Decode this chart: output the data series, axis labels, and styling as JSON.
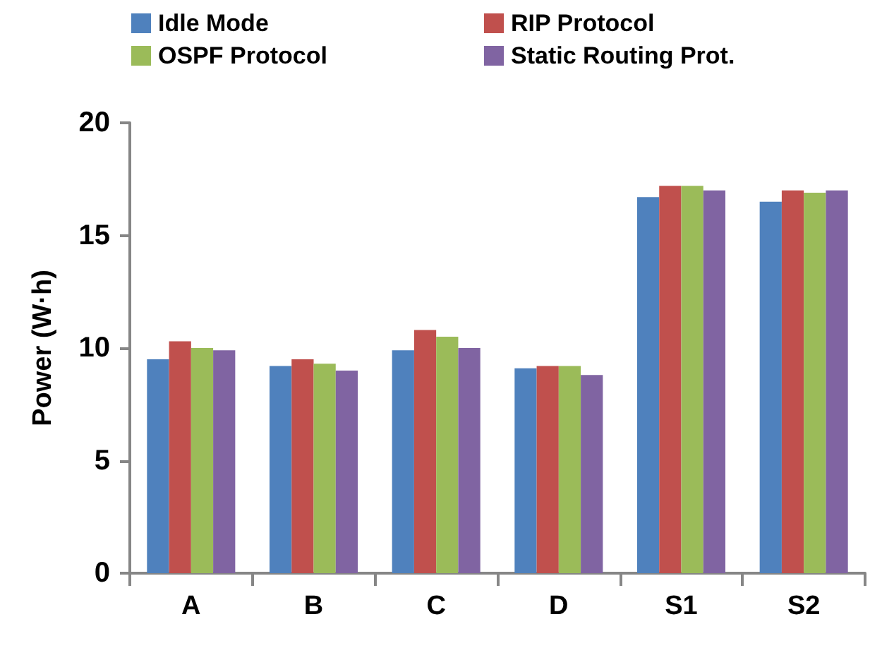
{
  "chart_data": {
    "type": "bar",
    "ylabel": "Power (W·h)",
    "categories": [
      "A",
      "B",
      "C",
      "D",
      "S1",
      "S2"
    ],
    "series": [
      {
        "name": "Idle Mode",
        "color": "#4f81bd",
        "values": [
          9.5,
          9.2,
          9.9,
          9.1,
          16.7,
          16.5
        ]
      },
      {
        "name": "RIP Protocol",
        "color": "#c0504d",
        "values": [
          10.3,
          9.5,
          10.8,
          9.2,
          17.2,
          17.0
        ]
      },
      {
        "name": "OSPF Protocol",
        "color": "#9bbb59",
        "values": [
          10.0,
          9.3,
          10.5,
          9.2,
          17.2,
          16.9
        ]
      },
      {
        "name": "Static Routing Prot.",
        "color": "#8064a2",
        "values": [
          9.9,
          9.0,
          10.0,
          8.8,
          17.0,
          17.0
        ]
      }
    ],
    "ylim": [
      0,
      20
    ],
    "yticks": [
      0,
      5,
      10,
      15,
      20
    ],
    "grid": false,
    "legend": "top"
  }
}
